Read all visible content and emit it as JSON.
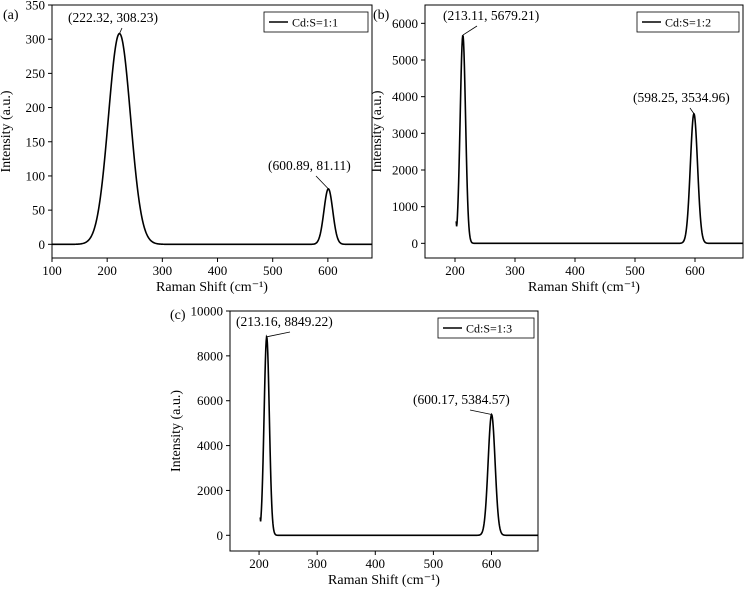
{
  "chart_data": [
    {
      "panel_label": "(a)",
      "type": "line",
      "xlabel": "Raman Shift (cm⁻¹)",
      "ylabel": "Intensity (a.u.)",
      "xlim": [
        100,
        680
      ],
      "ylim": [
        -20,
        350
      ],
      "xticks": [
        100,
        200,
        300,
        400,
        500,
        600
      ],
      "yticks": [
        0,
        50,
        100,
        150,
        200,
        250,
        300,
        350
      ],
      "legend_position": "top-right",
      "series": [
        {
          "name": "Cd:S=1:1",
          "color": "#000000",
          "x_start": 100,
          "x_end": 680,
          "peaks": [
            {
              "x": 222.32,
              "y": 308.23,
              "width_sigma": 20
            },
            {
              "x": 600.89,
              "y": 81.11,
              "width_sigma": 8
            }
          ]
        }
      ],
      "annotations": [
        {
          "text": "(222.32, 308.23)",
          "x": 222.32,
          "y": 308.23
        },
        {
          "text": "(600.89, 81.11)",
          "x": 600.89,
          "y": 81.11
        }
      ]
    },
    {
      "panel_label": "(b)",
      "type": "line",
      "xlabel": "Raman Shift (cm⁻¹)",
      "ylabel": "Intensity (a.u.)",
      "xlim": [
        150,
        680
      ],
      "ylim": [
        -400,
        6500
      ],
      "xticks": [
        200,
        300,
        400,
        500,
        600
      ],
      "yticks": [
        0,
        1000,
        2000,
        3000,
        4000,
        5000,
        6000
      ],
      "legend_position": "top-right",
      "series": [
        {
          "name": "Cd:S=1:2",
          "color": "#000000",
          "x_start": 202,
          "x_end": 680,
          "peaks": [
            {
              "x": 213.11,
              "y": 5679.21,
              "width_sigma": 4.5
            },
            {
              "x": 598.25,
              "y": 3534.96,
              "width_sigma": 6
            }
          ]
        }
      ],
      "annotations": [
        {
          "text": "(213.11, 5679.21)",
          "x": 213.11,
          "y": 5679.21
        },
        {
          "text": "(598.25, 3534.96)",
          "x": 598.25,
          "y": 3534.96
        }
      ]
    },
    {
      "panel_label": "(c)",
      "type": "line",
      "xlabel": "Raman Shift (cm⁻¹)",
      "ylabel": "Intensity (a.u.)",
      "xlim": [
        150,
        680
      ],
      "ylim": [
        -700,
        10000
      ],
      "xticks": [
        200,
        300,
        400,
        500,
        600
      ],
      "yticks": [
        0,
        2000,
        4000,
        6000,
        8000,
        10000
      ],
      "legend_position": "top-right",
      "series": [
        {
          "name": "Cd:S=1:3",
          "color": "#000000",
          "x_start": 202,
          "x_end": 680,
          "peaks": [
            {
              "x": 213.16,
              "y": 8849.22,
              "width_sigma": 4.5
            },
            {
              "x": 600.17,
              "y": 5384.57,
              "width_sigma": 6
            }
          ]
        }
      ],
      "annotations": [
        {
          "text": "(213.16, 8849.22)",
          "x": 213.16,
          "y": 8849.22
        },
        {
          "text": "(600.17, 5384.57)",
          "x": 600.17,
          "y": 5384.57
        }
      ]
    }
  ]
}
